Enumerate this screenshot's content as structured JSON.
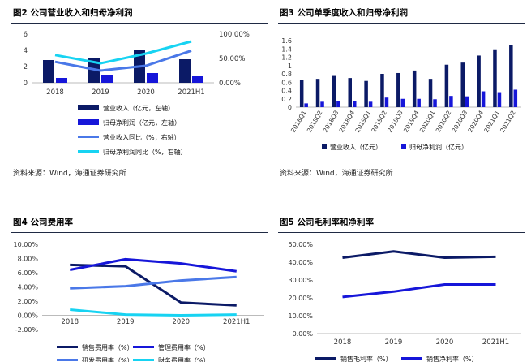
{
  "colors": {
    "navy": "#0b1a66",
    "blue": "#1616d9",
    "periwinkle": "#4a78e8",
    "cyan": "#17d3f2",
    "rule": "#1f2a44"
  },
  "chart_data": [
    {
      "type": "bar",
      "title": "图2 公司营业收入和归母净利润",
      "source": "资料来源：Wind，海通证券研究所",
      "categories": [
        "2018",
        "2019",
        "2020",
        "2021H1"
      ],
      "ylim": [
        0,
        6
      ],
      "yticks": [
        "0",
        "2",
        "4",
        "6"
      ],
      "y2lim": [
        0,
        100
      ],
      "y2ticks": [
        "0.00%",
        "50.00%",
        "100.00%"
      ],
      "bar_series": [
        {
          "name": "营业收入（亿元，左轴）",
          "values": [
            2.8,
            3.1,
            4.0,
            2.9
          ]
        },
        {
          "name": "归母净利润（亿元，左轴）",
          "values": [
            0.6,
            1.0,
            1.2,
            0.8
          ]
        }
      ],
      "line_series": [
        {
          "name": "营业收入同比（%，右轴）",
          "values": [
            43,
            25,
            35,
            66
          ]
        },
        {
          "name": "归母净利润同比（%，右轴）",
          "values": [
            57,
            40,
            60,
            85
          ]
        }
      ]
    },
    {
      "type": "bar",
      "title": "图3 公司单季度收入和归母净利润",
      "source": "资料来源：Wind，海通证券研究所",
      "categories": [
        "2018Q1",
        "2018Q2",
        "2018Q3",
        "2018Q4",
        "2019Q1",
        "2019Q2",
        "2019Q3",
        "2019Q4",
        "2020Q1",
        "2020Q2",
        "2020Q3",
        "2020Q4",
        "2021Q1",
        "2021Q2"
      ],
      "ylim": [
        0,
        1.6
      ],
      "yticks": [
        "0",
        "0.2",
        "0.4",
        "0.6",
        "0.8",
        "1",
        "1.2",
        "1.4",
        "1.6"
      ],
      "series": [
        {
          "name": "营业收入（亿元）",
          "values": [
            0.65,
            0.68,
            0.75,
            0.7,
            0.63,
            0.8,
            0.82,
            0.88,
            0.68,
            1.02,
            1.07,
            1.24,
            1.39,
            1.49
          ]
        },
        {
          "name": "归母净利润（亿元）",
          "values": [
            0.09,
            0.13,
            0.14,
            0.15,
            0.13,
            0.23,
            0.2,
            0.2,
            0.19,
            0.27,
            0.26,
            0.38,
            0.36,
            0.42
          ]
        }
      ]
    },
    {
      "type": "line",
      "title": "图4 公司费用率",
      "categories": [
        "2018",
        "2019",
        "2020",
        "2021H1"
      ],
      "ylim": [
        -2,
        10
      ],
      "yticks": [
        "-2.00%",
        "0.00%",
        "2.00%",
        "4.00%",
        "6.00%",
        "8.00%",
        "10.00%"
      ],
      "series": [
        {
          "name": "销售费用率（%）",
          "values": [
            7.1,
            6.9,
            1.8,
            1.4
          ]
        },
        {
          "name": "管理费用率（%）",
          "values": [
            6.4,
            7.9,
            7.3,
            6.2
          ]
        },
        {
          "name": "研发费用率（%）",
          "values": [
            3.8,
            4.1,
            4.9,
            5.4
          ]
        },
        {
          "name": "财务费用率（%）",
          "values": [
            0.8,
            0.1,
            0.0,
            0.1
          ]
        }
      ]
    },
    {
      "type": "line",
      "title": "图5 公司毛利率和净利率",
      "categories": [
        "2018",
        "2019",
        "2020",
        "2021H1"
      ],
      "ylim": [
        0,
        50
      ],
      "yticks": [
        "0.00%",
        "10.00%",
        "20.00%",
        "30.00%",
        "40.00%",
        "50.00%"
      ],
      "series": [
        {
          "name": "销售毛利率（%）",
          "values": [
            42.5,
            46.0,
            42.5,
            43.0
          ]
        },
        {
          "name": "销售净利率（%）",
          "values": [
            20.5,
            23.5,
            27.5,
            27.5
          ]
        }
      ]
    }
  ]
}
